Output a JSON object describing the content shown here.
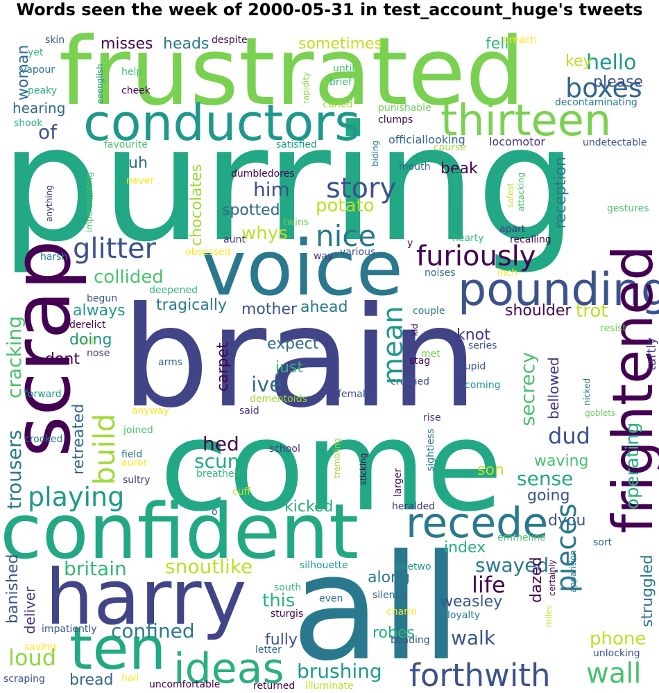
{
  "title": "Words seen the week of 2000-05-31 in test_account_huge's tweets",
  "words": [
    "frustrated",
    "purring",
    "conductors",
    "thirteen",
    "voice",
    "brain",
    "come",
    "all",
    "confident",
    "harry",
    "ten",
    "scrap",
    "pounding",
    "frightened",
    "recede",
    "ideas",
    "forthwith",
    "wall",
    "glitter",
    "furiously",
    "story",
    "nice",
    "boxes",
    "hello",
    "please",
    "key",
    "sometimes",
    "heads",
    "misses",
    "skin",
    "despite",
    "fell",
    "breach",
    "woman",
    "of",
    "hearing",
    "yet",
    "vapour",
    "peaky",
    "help",
    "cheek",
    "until",
    "brief",
    "rapidity",
    "eeenglish",
    "curled",
    "punishable",
    "decontaminating",
    "shook",
    "clumps",
    "favourite",
    "satisfied",
    "officiallooking",
    "locomotor",
    "course",
    "undetectable",
    "uh",
    "him",
    "beak",
    "chocolates",
    "dumbledores",
    "reception",
    "mouth",
    "biding",
    "safest",
    "attacking",
    "persuade",
    "anything",
    "never",
    "impersonating",
    "potato",
    "whys",
    "spotted",
    "twins",
    "apart",
    "gestures",
    "aunt",
    "hearty",
    "recalling",
    "y",
    "harsh",
    "obsessed",
    "various",
    "way",
    "collided",
    "inch",
    "noises",
    "deepened",
    "tragically",
    "always",
    "mother",
    "ahead",
    "shoulder",
    "trot",
    "begun",
    "couple",
    "derelict",
    "half",
    "resist",
    "doing",
    "tartly",
    "kid",
    "expect",
    "knot",
    "series",
    "dont",
    "nose",
    "met",
    "stag",
    "arms",
    "just",
    "ive",
    "stupid",
    "carpet",
    "crushed",
    "bellowed",
    "forward",
    "female",
    "coming",
    "dementoids",
    "anyway",
    "said",
    "nicked",
    "goblets",
    "crooked",
    "rise",
    "joined",
    "hed",
    "dud",
    "secrecy",
    "field",
    "school",
    "auror",
    "scum",
    "sightless",
    "trembling",
    "sticking",
    "larger",
    "sultry",
    "breathed",
    "son",
    "waving",
    "sense",
    "operating",
    "cuff",
    "kicked",
    "heralded",
    "playing",
    "going",
    "build",
    "retreated",
    "cracking",
    "trousers",
    "o",
    "dyou",
    "mean",
    "emmeline",
    "index",
    "sort",
    "britain",
    "silhouette",
    "snoutlike",
    "swayed",
    "apparition",
    "certainly",
    "miles",
    "dazed",
    "along",
    "onetwo",
    "banished",
    "south",
    "deliver",
    "this",
    "even",
    "silently",
    "weasley",
    "life",
    "pieces",
    "struggled",
    "charm",
    "sturgis",
    "loyalty",
    "impatiently",
    "confined",
    "fully",
    "robes",
    "walk",
    "beading",
    "saving",
    "letter",
    "phone",
    "unlocking",
    "loud",
    "brushing",
    "bread",
    "hall",
    "uncomfortable",
    "returned",
    "illuminate",
    "scraping"
  ]
}
